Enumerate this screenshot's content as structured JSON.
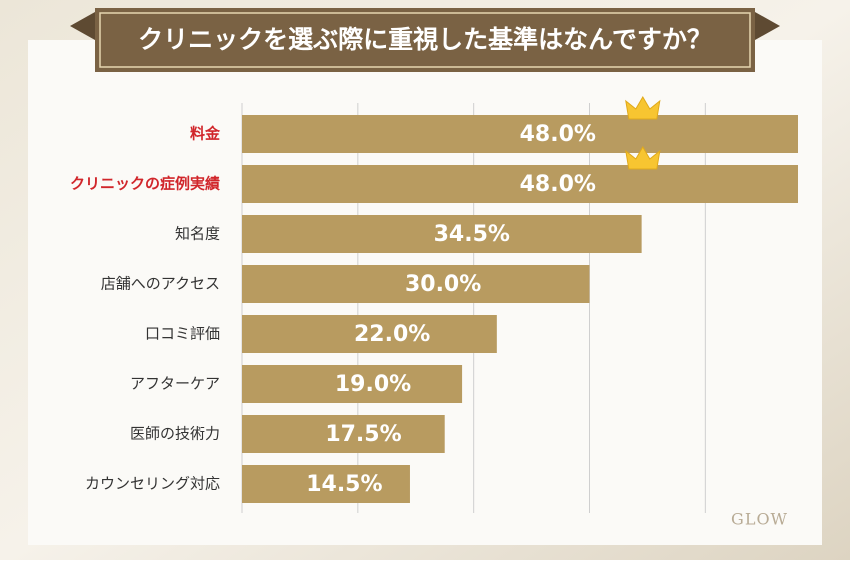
{
  "chart_data": {
    "type": "barh",
    "title": "クリニックを選ぶ際に重視した基準はなんですか？",
    "categories": [
      "料金",
      "クリニックの症例実績",
      "知名度",
      "店舗へのアクセス",
      "口コミ評価",
      "アフターケア",
      "医師の技術力",
      "カウンセリング対応"
    ],
    "category_colors": [
      "#d1262b",
      "#d1262b",
      "#333333",
      "#333333",
      "#333333",
      "#333333",
      "#333333",
      "#333333"
    ],
    "values": [
      48.0,
      48.0,
      34.5,
      30.0,
      22.0,
      19.0,
      17.5,
      14.5
    ],
    "value_labels": [
      "48.0%",
      "48.0%",
      "34.5%",
      "30.0%",
      "22.0%",
      "19.0%",
      "17.5%",
      "14.5%"
    ],
    "color": "#b89b60",
    "xlim": [
      0,
      48
    ],
    "xticks": [
      10,
      20,
      30,
      40
    ],
    "grid": true,
    "watermark": "GLOW"
  }
}
